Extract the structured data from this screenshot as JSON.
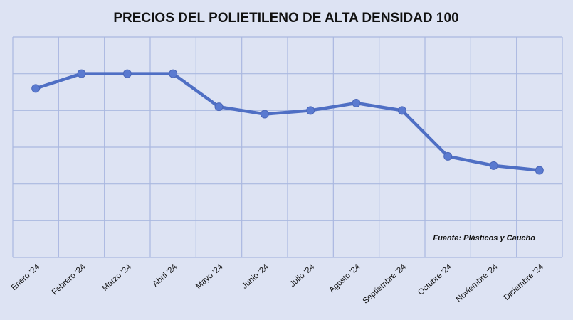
{
  "chart_data": {
    "type": "line",
    "title": "PRECIOS DEL POLIETILENO DE ALTA DENSIDAD 100",
    "categories": [
      "Enero '24",
      "Febrero '24",
      "Marzo '24",
      "Abril '24",
      "Mayo '24",
      "Junio '24",
      "Julio '24",
      "Agosto '24",
      "Septiembre '24",
      "Octubre '24",
      "Noviembre '24",
      "Diciembre '24"
    ],
    "series": [
      {
        "values": [
          4.6,
          5.0,
          5.0,
          5.0,
          4.1,
          3.9,
          4.0,
          4.2,
          4.0,
          2.75,
          2.5,
          2.37
        ]
      }
    ],
    "ylim": [
      0,
      6
    ],
    "grid": true,
    "source": "Fuente: Plásticos y Caucho",
    "colors": {
      "line": "#4f6fc4",
      "marker": "#5a7ad0",
      "grid": "#aab8e0",
      "background": "#dde3f3"
    }
  }
}
